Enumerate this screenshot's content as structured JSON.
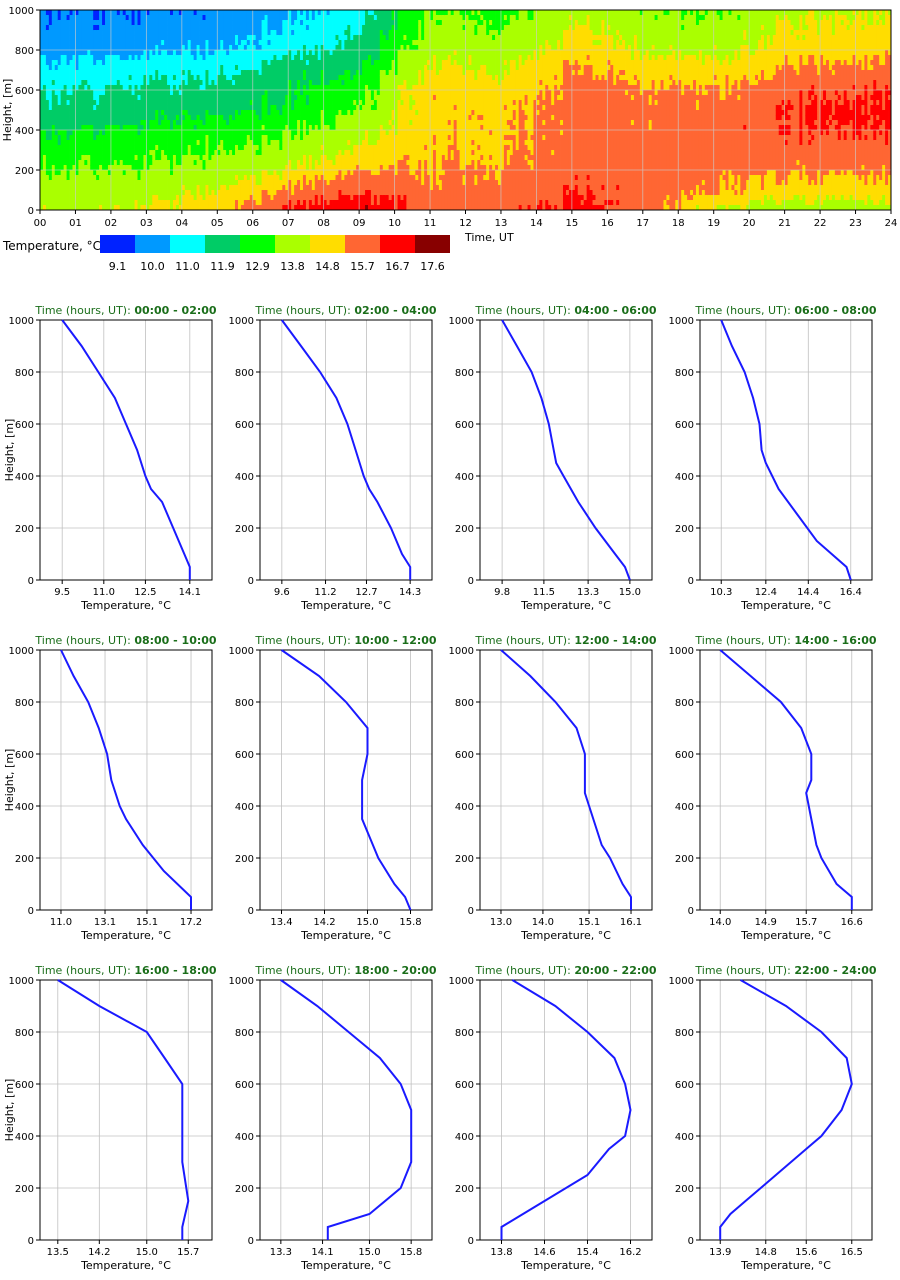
{
  "chart_data": {
    "heatmap": {
      "type": "heatmap",
      "ylabel": "Height, [m]",
      "xlabel": "Time, UT",
      "x_ticks": [
        "00",
        "01",
        "02",
        "03",
        "04",
        "05",
        "06",
        "07",
        "08",
        "09",
        "10",
        "11",
        "12",
        "13",
        "14",
        "15",
        "16",
        "17",
        "18",
        "19",
        "20",
        "21",
        "22",
        "23",
        "24"
      ],
      "y_ticks": [
        "0",
        "200",
        "400",
        "600",
        "800",
        "1000"
      ],
      "xlim": [
        0,
        24
      ],
      "ylim": [
        0,
        1000
      ],
      "legend_title": "Temperature, °C",
      "legend_colors": [
        "#0022ff",
        "#0099ff",
        "#00ffff",
        "#00cc66",
        "#00ff00",
        "#aaff00",
        "#ffdd00",
        "#ff6633",
        "#ff0000",
        "#880000"
      ],
      "legend_values": [
        "9.1",
        "10.0",
        "11.0",
        "11.9",
        "12.9",
        "13.8",
        "14.8",
        "15.7",
        "16.7",
        "17.6"
      ],
      "cols_per_hour": 12,
      "rows": 40,
      "column_temperature_profiles": [
        [
          9.5,
          10.2,
          10.8,
          11.4,
          11.8,
          12.4,
          13.1,
          13.8,
          14.1
        ],
        [
          9.6,
          10.3,
          11.0,
          11.6,
          12.0,
          12.6,
          13.2,
          13.9,
          14.3
        ],
        [
          9.8,
          10.5,
          11.3,
          11.7,
          12.3,
          12.9,
          13.6,
          14.4,
          15.0
        ],
        [
          10.3,
          11.1,
          11.9,
          12.3,
          12.6,
          13.2,
          14.0,
          15.3,
          16.4
        ],
        [
          11.0,
          11.9,
          12.5,
          13.1,
          13.4,
          14.0,
          14.8,
          16.2,
          17.2
        ],
        [
          13.4,
          14.1,
          14.6,
          14.9,
          14.9,
          15.0,
          15.2,
          15.5,
          15.8
        ],
        [
          13.0,
          13.8,
          14.3,
          14.8,
          15.1,
          15.1,
          15.2,
          15.6,
          16.1
        ],
        [
          14.0,
          14.8,
          15.3,
          15.6,
          15.7,
          15.7,
          15.8,
          16.1,
          16.6
        ],
        [
          13.5,
          14.3,
          14.9,
          15.4,
          15.6,
          15.6,
          15.7,
          15.8,
          15.7
        ],
        [
          13.3,
          14.0,
          14.7,
          15.3,
          15.7,
          15.8,
          15.7,
          15.4,
          14.3
        ],
        [
          14.0,
          14.8,
          15.3,
          15.8,
          16.2,
          16.1,
          15.6,
          14.8,
          13.8
        ],
        [
          14.3,
          15.0,
          15.6,
          16.2,
          16.5,
          16.3,
          15.7,
          14.9,
          13.9
        ]
      ],
      "column_labels": [
        "00-02",
        "02-04",
        "04-06",
        "06-08",
        "08-10",
        "10-12",
        "12-14",
        "14-16",
        "16-18",
        "18-20",
        "20-22",
        "22-24"
      ],
      "profile_heights": [
        1000,
        800,
        700,
        600,
        500,
        400,
        250,
        100,
        0
      ]
    },
    "profiles": [
      {
        "title_prefix": "Time (hours, UT): ",
        "title_range": "00:00 - 02:00",
        "xlabel": "Temperature, °C",
        "ylabel": "Height, [m]",
        "xticks": [
          "9.5",
          "11.0",
          "12.5",
          "14.1"
        ],
        "xlim": [
          8.7,
          14.9
        ],
        "points": [
          [
            1000,
            9.5
          ],
          [
            900,
            10.2
          ],
          [
            800,
            10.8
          ],
          [
            700,
            11.4
          ],
          [
            600,
            11.8
          ],
          [
            500,
            12.2
          ],
          [
            400,
            12.5
          ],
          [
            350,
            12.7
          ],
          [
            300,
            13.1
          ],
          [
            200,
            13.5
          ],
          [
            100,
            13.9
          ],
          [
            50,
            14.1
          ],
          [
            0,
            14.1
          ]
        ]
      },
      {
        "title_prefix": "Time (hours, UT): ",
        "title_range": "02:00 - 04:00",
        "xlabel": "Temperature, °C",
        "ylabel": "",
        "xticks": [
          "9.6",
          "11.2",
          "12.7",
          "14.3"
        ],
        "xlim": [
          8.8,
          15.1
        ],
        "points": [
          [
            1000,
            9.6
          ],
          [
            900,
            10.3
          ],
          [
            800,
            11.0
          ],
          [
            700,
            11.6
          ],
          [
            600,
            12.0
          ],
          [
            500,
            12.3
          ],
          [
            400,
            12.6
          ],
          [
            350,
            12.8
          ],
          [
            300,
            13.1
          ],
          [
            200,
            13.6
          ],
          [
            100,
            14.0
          ],
          [
            50,
            14.3
          ],
          [
            0,
            14.3
          ]
        ]
      },
      {
        "title_prefix": "Time (hours, UT): ",
        "title_range": "04:00 - 06:00",
        "xlabel": "Temperature, °C",
        "ylabel": "",
        "xticks": [
          "9.8",
          "11.5",
          "13.3",
          "15.0"
        ],
        "xlim": [
          8.9,
          15.9
        ],
        "points": [
          [
            1000,
            9.8
          ],
          [
            900,
            10.4
          ],
          [
            800,
            11.0
          ],
          [
            700,
            11.4
          ],
          [
            600,
            11.7
          ],
          [
            500,
            11.9
          ],
          [
            450,
            12.0
          ],
          [
            400,
            12.3
          ],
          [
            300,
            12.9
          ],
          [
            200,
            13.6
          ],
          [
            100,
            14.4
          ],
          [
            50,
            14.8
          ],
          [
            0,
            15.0
          ]
        ]
      },
      {
        "title_prefix": "Time (hours, UT): ",
        "title_range": "06:00 - 08:00",
        "xlabel": "Temperature, °C",
        "ylabel": "",
        "xticks": [
          "10.3",
          "12.4",
          "14.4",
          "16.4"
        ],
        "xlim": [
          9.3,
          17.4
        ],
        "points": [
          [
            1000,
            10.3
          ],
          [
            900,
            10.8
          ],
          [
            800,
            11.4
          ],
          [
            700,
            11.8
          ],
          [
            600,
            12.1
          ],
          [
            500,
            12.2
          ],
          [
            450,
            12.4
          ],
          [
            350,
            13.0
          ],
          [
            250,
            13.9
          ],
          [
            150,
            14.8
          ],
          [
            50,
            16.2
          ],
          [
            0,
            16.4
          ]
        ]
      },
      {
        "title_prefix": "Time (hours, UT): ",
        "title_range": "08:00 - 10:00",
        "xlabel": "Temperature, °C",
        "ylabel": "Height, [m]",
        "xticks": [
          "11.0",
          "13.1",
          "15.1",
          "17.2"
        ],
        "xlim": [
          10.0,
          18.2
        ],
        "points": [
          [
            1000,
            11.0
          ],
          [
            900,
            11.6
          ],
          [
            800,
            12.3
          ],
          [
            700,
            12.8
          ],
          [
            600,
            13.2
          ],
          [
            500,
            13.4
          ],
          [
            400,
            13.8
          ],
          [
            350,
            14.1
          ],
          [
            250,
            14.9
          ],
          [
            150,
            15.9
          ],
          [
            50,
            17.2
          ],
          [
            0,
            17.2
          ]
        ]
      },
      {
        "title_prefix": "Time (hours, UT): ",
        "title_range": "10:00 - 12:00",
        "xlabel": "Temperature, °C",
        "ylabel": "",
        "xticks": [
          "13.4",
          "14.2",
          "15.0",
          "15.8"
        ],
        "xlim": [
          13.0,
          16.2
        ],
        "points": [
          [
            1000,
            13.4
          ],
          [
            900,
            14.1
          ],
          [
            800,
            14.6
          ],
          [
            700,
            15.0
          ],
          [
            600,
            15.0
          ],
          [
            500,
            14.9
          ],
          [
            400,
            14.9
          ],
          [
            350,
            14.9
          ],
          [
            250,
            15.1
          ],
          [
            200,
            15.2
          ],
          [
            100,
            15.5
          ],
          [
            50,
            15.7
          ],
          [
            0,
            15.8
          ]
        ]
      },
      {
        "title_prefix": "Time (hours, UT): ",
        "title_range": "12:00 - 14:00",
        "xlabel": "Temperature, °C",
        "ylabel": "",
        "xticks": [
          "13.0",
          "14.0",
          "15.1",
          "16.1"
        ],
        "xlim": [
          12.5,
          16.6
        ],
        "points": [
          [
            1000,
            13.0
          ],
          [
            900,
            13.7
          ],
          [
            800,
            14.3
          ],
          [
            700,
            14.8
          ],
          [
            600,
            15.0
          ],
          [
            500,
            15.0
          ],
          [
            450,
            15.0
          ],
          [
            350,
            15.2
          ],
          [
            250,
            15.4
          ],
          [
            200,
            15.6
          ],
          [
            100,
            15.9
          ],
          [
            50,
            16.1
          ],
          [
            0,
            16.1
          ]
        ]
      },
      {
        "title_prefix": "Time (hours, UT): ",
        "title_range": "14:00 - 16:00",
        "xlabel": "Temperature, °C",
        "ylabel": "",
        "xticks": [
          "14.0",
          "14.9",
          "15.7",
          "16.6"
        ],
        "xlim": [
          13.6,
          17.0
        ],
        "points": [
          [
            1000,
            14.0
          ],
          [
            900,
            14.6
          ],
          [
            800,
            15.2
          ],
          [
            700,
            15.6
          ],
          [
            600,
            15.8
          ],
          [
            500,
            15.8
          ],
          [
            450,
            15.7
          ],
          [
            350,
            15.8
          ],
          [
            250,
            15.9
          ],
          [
            200,
            16.0
          ],
          [
            100,
            16.3
          ],
          [
            50,
            16.6
          ],
          [
            0,
            16.6
          ]
        ]
      },
      {
        "title_prefix": "Time (hours, UT): ",
        "title_range": "16:00 - 18:00",
        "xlabel": "Temperature, °C",
        "ylabel": "Height, [m]",
        "xticks": [
          "13.5",
          "14.2",
          "15.0",
          "15.7"
        ],
        "xlim": [
          13.2,
          16.1
        ],
        "points": [
          [
            1000,
            13.5
          ],
          [
            900,
            14.2
          ],
          [
            800,
            15.0
          ],
          [
            700,
            15.3
          ],
          [
            600,
            15.6
          ],
          [
            500,
            15.6
          ],
          [
            400,
            15.6
          ],
          [
            300,
            15.6
          ],
          [
            150,
            15.7
          ],
          [
            50,
            15.6
          ],
          [
            0,
            15.6
          ]
        ]
      },
      {
        "title_prefix": "Time (hours, UT): ",
        "title_range": "18:00 - 20:00",
        "xlabel": "Temperature, °C",
        "ylabel": "",
        "xticks": [
          "13.3",
          "14.1",
          "15.0",
          "15.8"
        ],
        "xlim": [
          12.9,
          16.2
        ],
        "points": [
          [
            1000,
            13.3
          ],
          [
            900,
            14.0
          ],
          [
            800,
            14.6
          ],
          [
            700,
            15.2
          ],
          [
            600,
            15.6
          ],
          [
            500,
            15.8
          ],
          [
            400,
            15.8
          ],
          [
            300,
            15.8
          ],
          [
            200,
            15.6
          ],
          [
            100,
            15.0
          ],
          [
            50,
            14.2
          ],
          [
            0,
            14.2
          ]
        ]
      },
      {
        "title_prefix": "Time (hours, UT): ",
        "title_range": "20:00 - 22:00",
        "xlabel": "Temperature, °C",
        "ylabel": "",
        "xticks": [
          "13.8",
          "14.6",
          "15.4",
          "16.2"
        ],
        "xlim": [
          13.4,
          16.6
        ],
        "points": [
          [
            1000,
            14.0
          ],
          [
            900,
            14.8
          ],
          [
            800,
            15.4
          ],
          [
            700,
            15.9
          ],
          [
            600,
            16.1
          ],
          [
            500,
            16.2
          ],
          [
            400,
            16.1
          ],
          [
            350,
            15.8
          ],
          [
            250,
            15.4
          ],
          [
            150,
            14.6
          ],
          [
            50,
            13.8
          ],
          [
            0,
            13.8
          ]
        ]
      },
      {
        "title_prefix": "Time (hours, UT): ",
        "title_range": "22:00 - 24:00",
        "xlabel": "Temperature, °C",
        "ylabel": "",
        "xticks": [
          "13.9",
          "14.8",
          "15.6",
          "16.5"
        ],
        "xlim": [
          13.5,
          16.9
        ],
        "points": [
          [
            1000,
            14.3
          ],
          [
            900,
            15.2
          ],
          [
            800,
            15.9
          ],
          [
            700,
            16.4
          ],
          [
            600,
            16.5
          ],
          [
            500,
            16.3
          ],
          [
            400,
            15.9
          ],
          [
            350,
            15.6
          ],
          [
            250,
            15.0
          ],
          [
            150,
            14.4
          ],
          [
            100,
            14.1
          ],
          [
            50,
            13.9
          ],
          [
            0,
            13.9
          ]
        ]
      }
    ],
    "profile_yticks": [
      "0",
      "200",
      "400",
      "600",
      "800",
      "1000"
    ],
    "profile_ylim": [
      0,
      1000
    ]
  }
}
